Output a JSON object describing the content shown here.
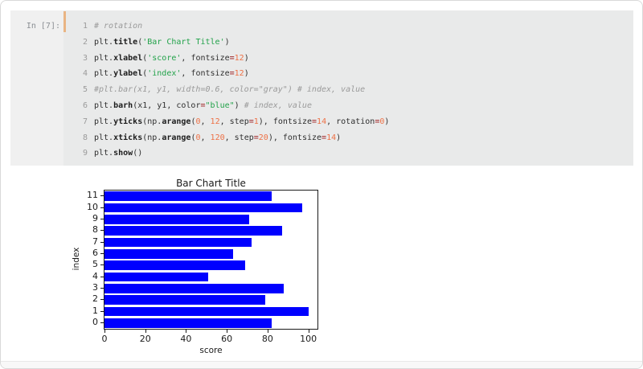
{
  "cell": {
    "prompt": "In [7]:",
    "background": "#e9eaea",
    "cursor_color": "#e9b483",
    "lines": [
      {
        "num": "1",
        "tokens": [
          {
            "t": "# rotation",
            "c": "com"
          }
        ]
      },
      {
        "num": "2",
        "tokens": [
          {
            "t": "plt.",
            "c": "pln"
          },
          {
            "t": "title",
            "c": "fn"
          },
          {
            "t": "(",
            "c": "pln"
          },
          {
            "t": "'Bar Chart Title'",
            "c": "str"
          },
          {
            "t": ")",
            "c": "pln"
          }
        ]
      },
      {
        "num": "3",
        "tokens": [
          {
            "t": "plt.",
            "c": "pln"
          },
          {
            "t": "xlabel",
            "c": "fn"
          },
          {
            "t": "(",
            "c": "pln"
          },
          {
            "t": "'score'",
            "c": "str"
          },
          {
            "t": ", fontsize",
            "c": "pln"
          },
          {
            "t": "=",
            "c": "op"
          },
          {
            "t": "12",
            "c": "num"
          },
          {
            "t": ")",
            "c": "pln"
          }
        ]
      },
      {
        "num": "4",
        "tokens": [
          {
            "t": "plt.",
            "c": "pln"
          },
          {
            "t": "ylabel",
            "c": "fn"
          },
          {
            "t": "(",
            "c": "pln"
          },
          {
            "t": "'index'",
            "c": "str"
          },
          {
            "t": ", fontsize",
            "c": "pln"
          },
          {
            "t": "=",
            "c": "op"
          },
          {
            "t": "12",
            "c": "num"
          },
          {
            "t": ")",
            "c": "pln"
          }
        ]
      },
      {
        "num": "5",
        "tokens": [
          {
            "t": "#plt.bar(x1, y1, width=0.6, color=\"gray\") # index, value",
            "c": "com"
          }
        ]
      },
      {
        "num": "6",
        "tokens": [
          {
            "t": "plt.",
            "c": "pln"
          },
          {
            "t": "barh",
            "c": "fn"
          },
          {
            "t": "(x1, y1, color",
            "c": "pln"
          },
          {
            "t": "=",
            "c": "op"
          },
          {
            "t": "\"blue\"",
            "c": "str"
          },
          {
            "t": ") ",
            "c": "pln"
          },
          {
            "t": "# index, value",
            "c": "com"
          }
        ]
      },
      {
        "num": "7",
        "tokens": [
          {
            "t": "plt.",
            "c": "pln"
          },
          {
            "t": "yticks",
            "c": "fn"
          },
          {
            "t": "(np.",
            "c": "pln"
          },
          {
            "t": "arange",
            "c": "fn"
          },
          {
            "t": "(",
            "c": "pln"
          },
          {
            "t": "0",
            "c": "num"
          },
          {
            "t": ", ",
            "c": "pln"
          },
          {
            "t": "12",
            "c": "num"
          },
          {
            "t": ", step",
            "c": "pln"
          },
          {
            "t": "=",
            "c": "op"
          },
          {
            "t": "1",
            "c": "num"
          },
          {
            "t": "), fontsize",
            "c": "pln"
          },
          {
            "t": "=",
            "c": "op"
          },
          {
            "t": "14",
            "c": "num"
          },
          {
            "t": ", rotation",
            "c": "pln"
          },
          {
            "t": "=",
            "c": "op"
          },
          {
            "t": "0",
            "c": "num"
          },
          {
            "t": ")",
            "c": "pln"
          }
        ]
      },
      {
        "num": "8",
        "tokens": [
          {
            "t": "plt.",
            "c": "pln"
          },
          {
            "t": "xticks",
            "c": "fn"
          },
          {
            "t": "(np.",
            "c": "pln"
          },
          {
            "t": "arange",
            "c": "fn"
          },
          {
            "t": "(",
            "c": "pln"
          },
          {
            "t": "0",
            "c": "num"
          },
          {
            "t": ", ",
            "c": "pln"
          },
          {
            "t": "120",
            "c": "num"
          },
          {
            "t": ", step",
            "c": "pln"
          },
          {
            "t": "=",
            "c": "op"
          },
          {
            "t": "20",
            "c": "num"
          },
          {
            "t": "), fontsize",
            "c": "pln"
          },
          {
            "t": "=",
            "c": "op"
          },
          {
            "t": "14",
            "c": "num"
          },
          {
            "t": ")",
            "c": "pln"
          }
        ]
      },
      {
        "num": "9",
        "tokens": [
          {
            "t": "plt.",
            "c": "pln"
          },
          {
            "t": "show",
            "c": "fn"
          },
          {
            "t": "()",
            "c": "pln"
          }
        ]
      }
    ],
    "syntax_palette": {
      "plain": "#2f2f2f",
      "comment": "#9a9a9a",
      "string": "#22a24a",
      "number": "#ee7146",
      "operator": "#aa4243",
      "function": "#1d1d1d",
      "line_number": "#9b9b9b",
      "prompt": "#8b8f94"
    }
  },
  "chart_data": {
    "type": "bar",
    "orientation": "horizontal",
    "title": "Bar Chart Title",
    "xlabel": "score",
    "ylabel": "index",
    "categories": [
      "0",
      "1",
      "2",
      "3",
      "4",
      "5",
      "6",
      "7",
      "8",
      "9",
      "10",
      "11"
    ],
    "values": [
      82,
      100,
      79,
      88,
      51,
      69,
      63,
      72,
      87,
      71,
      97,
      82
    ],
    "bar_color": "#0000ff",
    "bar_height_ratio": 0.8,
    "xticks": [
      0,
      20,
      40,
      60,
      80,
      100
    ],
    "xlim": [
      0,
      104.5
    ],
    "grid": false,
    "legend": false,
    "frame_color": "#1a1a1a"
  }
}
